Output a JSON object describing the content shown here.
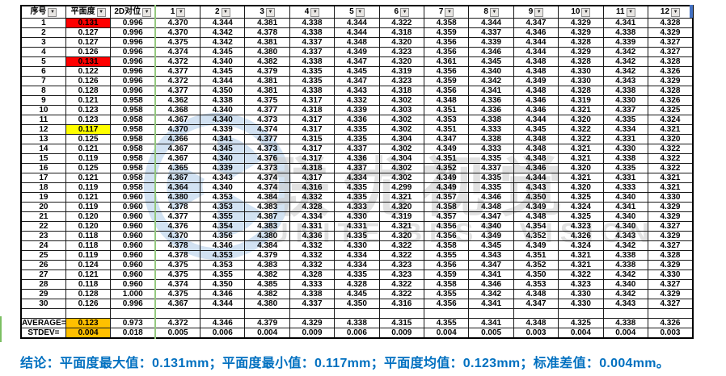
{
  "colors": {
    "highlight_red": "#FF0000",
    "highlight_yellow": "#FFFF00",
    "highlight_orange": "#FFC000",
    "freeze_line_green": "#94C97F",
    "conclusion_blue": "#0070C0",
    "watermark_blue": "#AECBE8"
  },
  "watermark": {
    "zh": "联优视觉",
    "en": "UNITE BEST VISION"
  },
  "table": {
    "filter_icon": "▼",
    "columns": [
      {
        "key": "seq",
        "label": "序号"
      },
      {
        "key": "flatness",
        "label": "平面度"
      },
      {
        "key": "align2d",
        "label": "2D对位"
      },
      {
        "key": "c1",
        "label": "1"
      },
      {
        "key": "c2",
        "label": "2"
      },
      {
        "key": "c3",
        "label": "3"
      },
      {
        "key": "c4",
        "label": "4"
      },
      {
        "key": "c5",
        "label": "5"
      },
      {
        "key": "c6",
        "label": "6"
      },
      {
        "key": "c7",
        "label": "7"
      },
      {
        "key": "c8",
        "label": "8"
      },
      {
        "key": "c9",
        "label": "9"
      },
      {
        "key": "c10",
        "label": "10"
      },
      {
        "key": "c11",
        "label": "11"
      },
      {
        "key": "c12",
        "label": "12"
      }
    ],
    "rows": [
      {
        "no": "1",
        "flatness": "0.131",
        "hl": "red",
        "align": "0.996",
        "values": [
          "4.370",
          "4.344",
          "4.381",
          "4.338",
          "4.344",
          "4.322",
          "4.358",
          "4.344",
          "4.347",
          "4.329",
          "4.341",
          "4.328"
        ]
      },
      {
        "no": "2",
        "flatness": "0.127",
        "hl": null,
        "align": "0.996",
        "values": [
          "4.370",
          "4.342",
          "4.378",
          "4.338",
          "4.344",
          "4.318",
          "4.359",
          "4.337",
          "4.346",
          "4.329",
          "4.338",
          "4.329"
        ]
      },
      {
        "no": "3",
        "flatness": "0.127",
        "hl": null,
        "align": "0.996",
        "values": [
          "4.375",
          "4.342",
          "4.381",
          "4.337",
          "4.348",
          "4.320",
          "4.356",
          "4.339",
          "4.344",
          "4.328",
          "4.339",
          "4.327"
        ]
      },
      {
        "no": "4",
        "flatness": "0.126",
        "hl": null,
        "align": "0.996",
        "values": [
          "4.374",
          "4.345",
          "4.380",
          "4.337",
          "4.349",
          "4.323",
          "4.356",
          "4.346",
          "4.344",
          "4.329",
          "4.342",
          "4.327"
        ]
      },
      {
        "no": "5",
        "flatness": "0.131",
        "hl": "red",
        "align": "0.996",
        "values": [
          "4.372",
          "4.340",
          "4.382",
          "4.338",
          "4.347",
          "4.320",
          "4.361",
          "4.345",
          "4.348",
          "4.328",
          "4.342",
          "4.328"
        ]
      },
      {
        "no": "6",
        "flatness": "0.122",
        "hl": null,
        "align": "0.996",
        "values": [
          "4.377",
          "4.345",
          "4.379",
          "4.335",
          "4.345",
          "4.319",
          "4.356",
          "4.340",
          "4.348",
          "4.330",
          "4.342",
          "4.326"
        ]
      },
      {
        "no": "7",
        "flatness": "0.126",
        "hl": null,
        "align": "0.996",
        "values": [
          "4.372",
          "4.344",
          "4.381",
          "4.335",
          "4.347",
          "4.323",
          "4.359",
          "4.342",
          "4.349",
          "4.330",
          "4.343",
          "4.329"
        ]
      },
      {
        "no": "8",
        "flatness": "0.128",
        "hl": null,
        "align": "0.996",
        "values": [
          "4.377",
          "4.350",
          "4.381",
          "4.338",
          "4.343",
          "4.318",
          "4.356",
          "4.341",
          "4.348",
          "4.328",
          "4.338",
          "4.328"
        ]
      },
      {
        "no": "9",
        "flatness": "0.121",
        "hl": null,
        "align": "0.958",
        "values": [
          "4.362",
          "4.338",
          "4.375",
          "4.317",
          "4.332",
          "4.302",
          "4.348",
          "4.336",
          "4.346",
          "4.319",
          "4.330",
          "4.326"
        ]
      },
      {
        "no": "10",
        "flatness": "0.123",
        "hl": null,
        "align": "0.958",
        "values": [
          "4.368",
          "4.340",
          "4.377",
          "4.318",
          "4.339",
          "4.303",
          "4.351",
          "4.336",
          "4.346",
          "4.321",
          "4.337",
          "4.325"
        ]
      },
      {
        "no": "11",
        "flatness": "0.123",
        "hl": null,
        "align": "0.958",
        "values": [
          "4.367",
          "4.340",
          "4.373",
          "4.317",
          "4.336",
          "4.302",
          "4.353",
          "4.338",
          "4.344",
          "4.320",
          "4.335",
          "4.324"
        ]
      },
      {
        "no": "12",
        "flatness": "0.117",
        "hl": "yellow",
        "align": "0.958",
        "values": [
          "4.370",
          "4.339",
          "4.374",
          "4.317",
          "4.335",
          "4.302",
          "4.351",
          "4.333",
          "4.345",
          "4.322",
          "4.334",
          "4.321"
        ]
      },
      {
        "no": "13",
        "flatness": "0.125",
        "hl": null,
        "align": "0.958",
        "values": [
          "4.366",
          "4.341",
          "4.377",
          "4.315",
          "4.335",
          "4.304",
          "4.347",
          "4.338",
          "4.348",
          "4.322",
          "4.331",
          "4.320"
        ]
      },
      {
        "no": "14",
        "flatness": "0.121",
        "hl": null,
        "align": "0.958",
        "values": [
          "4.367",
          "4.345",
          "4.373",
          "4.317",
          "4.337",
          "4.302",
          "4.349",
          "4.333",
          "4.348",
          "4.321",
          "4.330",
          "4.322"
        ]
      },
      {
        "no": "15",
        "flatness": "0.119",
        "hl": null,
        "align": "0.958",
        "values": [
          "4.367",
          "4.340",
          "4.376",
          "4.317",
          "4.336",
          "4.304",
          "4.351",
          "4.335",
          "4.348",
          "4.321",
          "4.338",
          "4.322"
        ]
      },
      {
        "no": "16",
        "flatness": "0.125",
        "hl": null,
        "align": "0.958",
        "values": [
          "4.365",
          "4.339",
          "4.373",
          "4.318",
          "4.337",
          "4.302",
          "4.352",
          "4.337",
          "4.346",
          "4.320",
          "4.335",
          "4.322"
        ]
      },
      {
        "no": "17",
        "flatness": "0.121",
        "hl": null,
        "align": "0.958",
        "values": [
          "4.367",
          "4.343",
          "4.374",
          "4.317",
          "4.334",
          "4.302",
          "4.349",
          "4.335",
          "4.344",
          "4.321",
          "4.331",
          "4.321"
        ]
      },
      {
        "no": "18",
        "flatness": "0.119",
        "hl": null,
        "align": "0.958",
        "values": [
          "4.364",
          "4.340",
          "4.374",
          "4.316",
          "4.335",
          "4.299",
          "4.349",
          "4.335",
          "4.343",
          "4.320",
          "4.333",
          "4.321"
        ]
      },
      {
        "no": "19",
        "flatness": "0.121",
        "hl": null,
        "align": "0.960",
        "values": [
          "4.380",
          "4.353",
          "4.384",
          "4.332",
          "4.335",
          "4.321",
          "4.357",
          "4.346",
          "4.350",
          "4.325",
          "4.340",
          "4.330"
        ]
      },
      {
        "no": "20",
        "flatness": "0.119",
        "hl": null,
        "align": "0.960",
        "values": [
          "4.378",
          "4.353",
          "4.383",
          "4.328",
          "4.333",
          "4.320",
          "4.358",
          "4.348",
          "4.349",
          "4.324",
          "4.341",
          "4.329"
        ]
      },
      {
        "no": "21",
        "flatness": "0.120",
        "hl": null,
        "align": "0.960",
        "values": [
          "4.377",
          "4.355",
          "4.387",
          "4.334",
          "4.330",
          "4.319",
          "4.357",
          "4.347",
          "4.348",
          "4.325",
          "4.340",
          "4.329"
        ]
      },
      {
        "no": "22",
        "flatness": "0.120",
        "hl": null,
        "align": "0.960",
        "values": [
          "4.376",
          "4.354",
          "4.383",
          "4.331",
          "4.331",
          "4.321",
          "4.356",
          "4.340",
          "4.354",
          "4.323",
          "4.340",
          "4.327"
        ]
      },
      {
        "no": "23",
        "flatness": "0.118",
        "hl": null,
        "align": "0.960",
        "values": [
          "4.370",
          "4.356",
          "4.380",
          "4.336",
          "4.335",
          "4.320",
          "4.356",
          "4.349",
          "4.352",
          "4.326",
          "4.343",
          "4.329"
        ]
      },
      {
        "no": "24",
        "flatness": "0.118",
        "hl": null,
        "align": "0.960",
        "values": [
          "4.378",
          "4.346",
          "4.384",
          "4.332",
          "4.330",
          "4.322",
          "4.358",
          "4.345",
          "4.349",
          "4.324",
          "4.342",
          "4.327"
        ]
      },
      {
        "no": "25",
        "flatness": "0.119",
        "hl": null,
        "align": "0.960",
        "values": [
          "4.378",
          "4.353",
          "4.379",
          "4.332",
          "4.334",
          "4.322",
          "4.355",
          "4.343",
          "4.351",
          "4.321",
          "4.338",
          "4.328"
        ]
      },
      {
        "no": "26",
        "flatness": "0.124",
        "hl": null,
        "align": "0.960",
        "values": [
          "4.375",
          "4.353",
          "4.383",
          "4.332",
          "4.334",
          "4.323",
          "4.356",
          "4.347",
          "4.352",
          "4.321",
          "4.338",
          "4.329"
        ]
      },
      {
        "no": "27",
        "flatness": "0.121",
        "hl": null,
        "align": "0.960",
        "values": [
          "4.375",
          "4.355",
          "4.382",
          "4.328",
          "4.335",
          "4.323",
          "4.359",
          "4.341",
          "4.350",
          "4.322",
          "4.342",
          "4.330"
        ]
      },
      {
        "no": "28",
        "flatness": "0.118",
        "hl": null,
        "align": "0.960",
        "values": [
          "4.374",
          "4.350",
          "4.385",
          "4.333",
          "4.328",
          "4.322",
          "4.358",
          "4.346",
          "4.353",
          "4.323",
          "4.340",
          "4.327"
        ]
      },
      {
        "no": "29",
        "flatness": "0.128",
        "hl": null,
        "align": "1.000",
        "values": [
          "4.375",
          "4.346",
          "4.382",
          "4.338",
          "4.345",
          "4.322",
          "4.355",
          "4.342",
          "4.348",
          "4.330",
          "4.342",
          "4.329"
        ]
      },
      {
        "no": "30",
        "flatness": "0.126",
        "hl": null,
        "align": "0.996",
        "values": [
          "4.367",
          "4.344",
          "4.380",
          "4.337",
          "4.350",
          "4.316",
          "4.356",
          "4.341",
          "4.347",
          "4.330",
          "4.343",
          "4.327"
        ]
      }
    ],
    "summary_rows": [
      {
        "no": "AVERAGE=",
        "flatness": "0.123",
        "hl": "orange",
        "align": "0.973",
        "values": [
          "4.372",
          "4.346",
          "4.379",
          "4.329",
          "4.338",
          "4.315",
          "4.355",
          "4.341",
          "4.348",
          "4.325",
          "4.338",
          "4.326"
        ]
      },
      {
        "no": "STDEV=",
        "flatness": "0.004",
        "hl": "orange",
        "align": "0.018",
        "values": [
          "0.005",
          "0.006",
          "0.004",
          "0.009",
          "0.006",
          "0.009",
          "0.004",
          "0.005",
          "0.003",
          "0.004",
          "0.004",
          "0.003"
        ]
      }
    ]
  },
  "conclusion": "结论：平面度最大值：0.131mm；平面度最小值：0.117mm；平面度均值：0.123mm；标准差值：0.004mm。"
}
